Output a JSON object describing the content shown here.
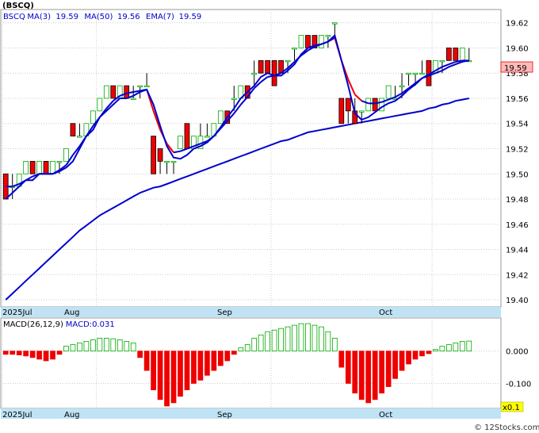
{
  "header": {
    "symbol": "(BSCQ)",
    "legend": [
      {
        "label": "BSCQ",
        "color": "#0000cc"
      },
      {
        "label": "MA(3)",
        "color": "#0000cc"
      },
      {
        "label": "19.59",
        "color": "#0000cc"
      },
      {
        "label": "MA(50)",
        "color": "#0000cc"
      },
      {
        "label": "19.56",
        "color": "#0000cc"
      },
      {
        "label": "EMA(7)",
        "color": "#0000cc"
      },
      {
        "label": "19.59",
        "color": "#0000cc"
      }
    ]
  },
  "price_axis": {
    "ticks": [
      "19.62",
      "19.60",
      "19.58",
      "19.56",
      "19.54",
      "19.52",
      "19.50",
      "19.48",
      "19.46",
      "19.44",
      "19.42",
      "19.40"
    ],
    "last_price": "19.59"
  },
  "time_axis": {
    "labels": [
      "2025Jul",
      "Aug",
      "Sep",
      "Oct"
    ]
  },
  "macd_panel": {
    "legend": [
      {
        "label": "MACD(26,12,9)",
        "color": "#000000"
      },
      {
        "label": "MACD:0.031",
        "color": "#0000cc"
      }
    ],
    "ticks": [
      "0.000",
      "-0.100"
    ],
    "scale_badge": "x0.1"
  },
  "footer": {
    "watermark": "© 12Stocks.com"
  },
  "colors": {
    "up": "#00aa00",
    "down": "#ee0000",
    "ma": "#0000cc",
    "ema_highlight": "#ee0000",
    "axis_band": "#bfe3f5",
    "grid": "#cccccc",
    "last_price_bg": "#ffbbbb"
  },
  "chart_data": {
    "type": "candlestick",
    "x_labels": [
      "2025Jul",
      "Aug",
      "Sep",
      "Oct"
    ],
    "ylim": [
      19.395,
      19.628
    ],
    "macd_ylim": [
      -0.175,
      0.095
    ],
    "macd_value": 0.031,
    "series_ohlc": [
      [
        19.5,
        19.5,
        19.48,
        19.48
      ],
      [
        19.49,
        19.5,
        19.48,
        19.49
      ],
      [
        19.49,
        19.5,
        19.49,
        19.5
      ],
      [
        19.5,
        19.51,
        19.5,
        19.51
      ],
      [
        19.51,
        19.51,
        19.5,
        19.5
      ],
      [
        19.5,
        19.51,
        19.5,
        19.51
      ],
      [
        19.51,
        19.51,
        19.5,
        19.5
      ],
      [
        19.5,
        19.51,
        19.5,
        19.51
      ],
      [
        19.51,
        19.51,
        19.5,
        19.51
      ],
      [
        19.51,
        19.52,
        19.51,
        19.52
      ],
      [
        19.54,
        19.54,
        19.53,
        19.53
      ],
      [
        19.53,
        19.54,
        19.53,
        19.53
      ],
      [
        19.53,
        19.54,
        19.53,
        19.54
      ],
      [
        19.54,
        19.55,
        19.54,
        19.55
      ],
      [
        19.55,
        19.56,
        19.55,
        19.56
      ],
      [
        19.56,
        19.57,
        19.56,
        19.57
      ],
      [
        19.57,
        19.57,
        19.56,
        19.56
      ],
      [
        19.56,
        19.57,
        19.56,
        19.57
      ],
      [
        19.57,
        19.57,
        19.56,
        19.56
      ],
      [
        19.56,
        19.57,
        19.56,
        19.56
      ],
      [
        19.57,
        19.57,
        19.56,
        19.57
      ],
      [
        19.57,
        19.58,
        19.57,
        19.57
      ],
      [
        19.53,
        19.53,
        19.5,
        19.5
      ],
      [
        19.52,
        19.52,
        19.5,
        19.51
      ],
      [
        19.51,
        19.51,
        19.5,
        19.51
      ],
      [
        19.51,
        19.51,
        19.5,
        19.51
      ],
      [
        19.52,
        19.53,
        19.52,
        19.53
      ],
      [
        19.54,
        19.54,
        19.52,
        19.52
      ],
      [
        19.52,
        19.53,
        19.52,
        19.53
      ],
      [
        19.52,
        19.54,
        19.52,
        19.53
      ],
      [
        19.53,
        19.54,
        19.53,
        19.53
      ],
      [
        19.53,
        19.54,
        19.53,
        19.54
      ],
      [
        19.54,
        19.55,
        19.54,
        19.55
      ],
      [
        19.55,
        19.55,
        19.54,
        19.54
      ],
      [
        19.56,
        19.57,
        19.55,
        19.56
      ],
      [
        19.56,
        19.57,
        19.56,
        19.57
      ],
      [
        19.57,
        19.57,
        19.56,
        19.56
      ],
      [
        19.58,
        19.59,
        19.57,
        19.58
      ],
      [
        19.59,
        19.59,
        19.58,
        19.58
      ],
      [
        19.59,
        19.59,
        19.58,
        19.58
      ],
      [
        19.59,
        19.59,
        19.57,
        19.57
      ],
      [
        19.59,
        19.59,
        19.58,
        19.58
      ],
      [
        19.59,
        19.59,
        19.58,
        19.59
      ],
      [
        19.6,
        19.6,
        19.59,
        19.6
      ],
      [
        19.6,
        19.61,
        19.6,
        19.61
      ],
      [
        19.61,
        19.61,
        19.6,
        19.6
      ],
      [
        19.61,
        19.61,
        19.6,
        19.6
      ],
      [
        19.6,
        19.61,
        19.6,
        19.61
      ],
      [
        19.61,
        19.61,
        19.6,
        19.61
      ],
      [
        19.62,
        19.62,
        19.61,
        19.62
      ],
      [
        19.56,
        19.56,
        19.54,
        19.54
      ],
      [
        19.56,
        19.56,
        19.54,
        19.55
      ],
      [
        19.55,
        19.56,
        19.54,
        19.54
      ],
      [
        19.55,
        19.55,
        19.54,
        19.55
      ],
      [
        19.55,
        19.56,
        19.55,
        19.56
      ],
      [
        19.56,
        19.56,
        19.55,
        19.55
      ],
      [
        19.55,
        19.56,
        19.55,
        19.56
      ],
      [
        19.56,
        19.57,
        19.56,
        19.57
      ],
      [
        19.56,
        19.57,
        19.56,
        19.56
      ],
      [
        19.57,
        19.58,
        19.56,
        19.57
      ],
      [
        19.58,
        19.58,
        19.57,
        19.58
      ],
      [
        19.58,
        19.58,
        19.57,
        19.58
      ],
      [
        19.58,
        19.59,
        19.58,
        19.58
      ],
      [
        19.59,
        19.59,
        19.57,
        19.57
      ],
      [
        19.58,
        19.59,
        19.58,
        19.59
      ],
      [
        19.59,
        19.59,
        19.58,
        19.59
      ],
      [
        19.6,
        19.6,
        19.59,
        19.59
      ],
      [
        19.6,
        19.6,
        19.59,
        19.59
      ],
      [
        19.59,
        19.6,
        19.59,
        19.6
      ],
      [
        19.59,
        19.6,
        19.59,
        19.59
      ]
    ],
    "ma3": [
      19.48,
      19.485,
      19.49,
      19.495,
      19.495,
      19.5,
      19.5,
      19.5,
      19.502,
      19.505,
      19.51,
      19.52,
      19.53,
      19.535,
      19.545,
      19.55,
      19.555,
      19.56,
      19.56,
      19.562,
      19.565,
      19.567,
      19.555,
      19.538,
      19.522,
      19.513,
      19.512,
      19.515,
      19.52,
      19.522,
      19.525,
      19.53,
      19.537,
      19.545,
      19.552,
      19.56,
      19.565,
      19.57,
      19.577,
      19.58,
      19.578,
      19.578,
      19.582,
      19.587,
      19.595,
      19.6,
      19.602,
      19.603,
      19.605,
      19.61,
      19.59,
      19.57,
      19.548,
      19.543,
      19.545,
      19.549,
      19.553,
      19.556,
      19.558,
      19.562,
      19.567,
      19.571,
      19.576,
      19.578,
      19.58,
      19.582,
      19.585,
      19.587,
      19.589,
      19.59
    ],
    "ema7": [
      19.49,
      19.49,
      19.492,
      19.495,
      19.498,
      19.5,
      19.5,
      19.5,
      19.503,
      19.507,
      19.515,
      19.522,
      19.53,
      19.538,
      19.545,
      19.552,
      19.558,
      19.562,
      19.564,
      19.565,
      19.566,
      19.567,
      19.55,
      19.535,
      19.524,
      19.517,
      19.518,
      19.52,
      19.522,
      19.524,
      19.526,
      19.53,
      19.536,
      19.542,
      19.548,
      19.555,
      19.561,
      19.568,
      19.573,
      19.577,
      19.578,
      19.58,
      19.584,
      19.589,
      19.594,
      19.598,
      19.601,
      19.603,
      19.605,
      19.608,
      19.59,
      19.575,
      19.563,
      19.558,
      19.556,
      19.556,
      19.557,
      19.559,
      19.561,
      19.564,
      19.568,
      19.572,
      19.576,
      19.579,
      19.582,
      19.585,
      19.587,
      19.589,
      19.59,
      19.59
    ],
    "ma50": [
      19.4,
      19.405,
      19.41,
      19.415,
      19.42,
      19.425,
      19.43,
      19.435,
      19.44,
      19.445,
      19.45,
      19.455,
      19.459,
      19.463,
      19.467,
      19.47,
      19.473,
      19.476,
      19.479,
      19.482,
      19.485,
      19.487,
      19.489,
      19.49,
      19.492,
      19.494,
      19.496,
      19.498,
      19.5,
      19.502,
      19.504,
      19.506,
      19.508,
      19.51,
      19.512,
      19.514,
      19.516,
      19.518,
      19.52,
      19.522,
      19.524,
      19.526,
      19.527,
      19.529,
      19.531,
      19.533,
      19.534,
      19.535,
      19.536,
      19.537,
      19.538,
      19.539,
      19.54,
      19.541,
      19.542,
      19.543,
      19.544,
      19.545,
      19.546,
      19.547,
      19.548,
      19.549,
      19.55,
      19.552,
      19.553,
      19.555,
      19.556,
      19.558,
      19.559,
      19.56
    ],
    "macd_hist": [
      -0.01,
      -0.01,
      -0.012,
      -0.015,
      -0.02,
      -0.025,
      -0.03,
      -0.025,
      -0.01,
      0.015,
      0.02,
      0.025,
      0.03,
      0.035,
      0.04,
      0.04,
      0.038,
      0.035,
      0.03,
      0.025,
      -0.02,
      -0.06,
      -0.12,
      -0.15,
      -0.17,
      -0.16,
      -0.14,
      -0.12,
      -0.1,
      -0.09,
      -0.075,
      -0.06,
      -0.045,
      -0.03,
      -0.01,
      0.01,
      0.02,
      0.04,
      0.05,
      0.06,
      0.065,
      0.07,
      0.075,
      0.08,
      0.085,
      0.085,
      0.08,
      0.075,
      0.06,
      0.04,
      -0.05,
      -0.1,
      -0.13,
      -0.15,
      -0.16,
      -0.15,
      -0.13,
      -0.11,
      -0.085,
      -0.06,
      -0.04,
      -0.025,
      -0.015,
      -0.008,
      0.005,
      0.015,
      0.02,
      0.025,
      0.03,
      0.031
    ]
  }
}
